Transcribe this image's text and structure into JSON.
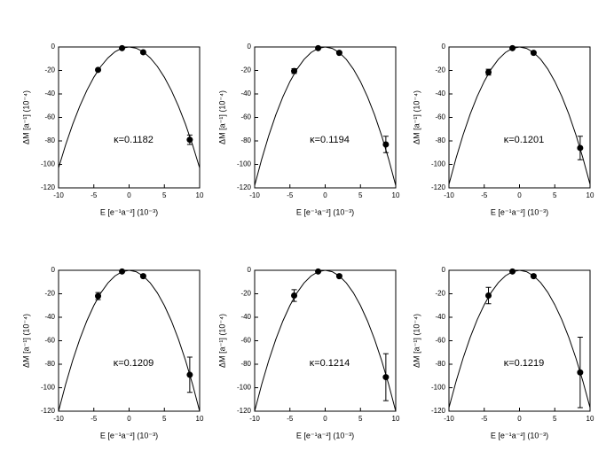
{
  "chart_data": [
    {
      "type": "scatter",
      "annotation": "κ=0.1182",
      "xlabel": "E [e⁻¹a⁻²] (10⁻³)",
      "ylabel": "ΔM [a⁻¹] (10⁻⁴)",
      "xlim": [
        -10,
        10
      ],
      "ylim": [
        -120,
        0
      ],
      "xticks": [
        -10,
        -5,
        0,
        5,
        10
      ],
      "yticks": [
        -120,
        -100,
        -80,
        -60,
        -40,
        -20,
        0
      ],
      "color": "#000000",
      "series": [
        {
          "kind": "line",
          "x": [
            -10,
            -9,
            -8,
            -7,
            -6,
            -5,
            -4,
            -3,
            -2,
            -1,
            0,
            1,
            2,
            3,
            4,
            5,
            6,
            7,
            8,
            9,
            10
          ],
          "values": [
            -103,
            -83.4,
            -65.9,
            -50.5,
            -37.1,
            -25.8,
            -16.5,
            -9.3,
            -4.1,
            -1,
            0,
            -1,
            -4.1,
            -9.3,
            -16.5,
            -25.8,
            -37.1,
            -50.5,
            -65.9,
            -83.4,
            -103
          ]
        },
        {
          "kind": "points",
          "x": [
            -4.4,
            -1,
            2,
            8.6
          ],
          "values": [
            -19.5,
            -1,
            -4.5,
            -79
          ],
          "errors": [
            1,
            0.5,
            0.5,
            4
          ]
        }
      ]
    },
    {
      "type": "scatter",
      "annotation": "κ=0.1194",
      "xlabel": "E [e⁻¹a⁻²] (10⁻³)",
      "ylabel": "ΔM [a⁻¹] (10⁻⁴)",
      "xlim": [
        -10,
        10
      ],
      "ylim": [
        -120,
        0
      ],
      "xticks": [
        -10,
        -5,
        0,
        5,
        10
      ],
      "yticks": [
        -120,
        -100,
        -80,
        -60,
        -40,
        -20,
        0
      ],
      "color": "#000000",
      "series": [
        {
          "kind": "line",
          "x": [
            -10,
            -9,
            -8,
            -7,
            -6,
            -5,
            -4,
            -3,
            -2,
            -1,
            0,
            1,
            2,
            3,
            4,
            5,
            6,
            7,
            8,
            9,
            10
          ],
          "values": [
            -118,
            -95.6,
            -75.5,
            -57.8,
            -42.5,
            -29.5,
            -18.9,
            -10.6,
            -4.7,
            -1.2,
            0,
            -1.2,
            -4.7,
            -10.6,
            -18.9,
            -29.5,
            -42.5,
            -57.8,
            -75.5,
            -95.6,
            -118
          ]
        },
        {
          "kind": "points",
          "x": [
            -4.4,
            -1,
            2,
            8.6
          ],
          "values": [
            -20.5,
            -1,
            -5,
            -83
          ],
          "errors": [
            2,
            0.5,
            0.5,
            7
          ]
        }
      ]
    },
    {
      "type": "scatter",
      "annotation": "κ=0.1201",
      "xlabel": "E [e⁻¹a⁻²] (10⁻³)",
      "ylabel": "ΔM [a⁻¹] (10⁻⁴)",
      "xlim": [
        -10,
        10
      ],
      "ylim": [
        -120,
        0
      ],
      "xticks": [
        -10,
        -5,
        0,
        5,
        10
      ],
      "yticks": [
        -120,
        -100,
        -80,
        -60,
        -40,
        -20,
        0
      ],
      "color": "#000000",
      "series": [
        {
          "kind": "line",
          "x": [
            -10,
            -9,
            -8,
            -7,
            -6,
            -5,
            -4,
            -3,
            -2,
            -1,
            0,
            1,
            2,
            3,
            4,
            5,
            6,
            7,
            8,
            9,
            10
          ],
          "values": [
            -117,
            -94.8,
            -74.9,
            -57.3,
            -42.1,
            -29.3,
            -18.7,
            -10.5,
            -4.7,
            -1.2,
            0,
            -1.2,
            -4.7,
            -10.5,
            -18.7,
            -29.3,
            -42.1,
            -57.3,
            -74.9,
            -94.8,
            -117
          ]
        },
        {
          "kind": "points",
          "x": [
            -4.4,
            -1,
            2,
            8.6
          ],
          "values": [
            -21.5,
            -1,
            -5,
            -86
          ],
          "errors": [
            2.5,
            0.5,
            0.5,
            10
          ]
        }
      ]
    },
    {
      "type": "scatter",
      "annotation": "κ=0.1209",
      "xlabel": "E [e⁻¹a⁻²] (10⁻³)",
      "ylabel": "ΔM [a⁻¹] (10⁻⁴)",
      "xlim": [
        -10,
        10
      ],
      "ylim": [
        -120,
        0
      ],
      "xticks": [
        -10,
        -5,
        0,
        5,
        10
      ],
      "yticks": [
        -120,
        -100,
        -80,
        -60,
        -40,
        -20,
        0
      ],
      "color": "#000000",
      "series": [
        {
          "kind": "line",
          "x": [
            -10,
            -9,
            -8,
            -7,
            -6,
            -5,
            -4,
            -3,
            -2,
            -1,
            0,
            1,
            2,
            3,
            4,
            5,
            6,
            7,
            8,
            9,
            10
          ],
          "values": [
            -120,
            -97.2,
            -76.8,
            -58.8,
            -43.2,
            -30,
            -19.2,
            -10.8,
            -4.8,
            -1.2,
            0,
            -1.2,
            -4.8,
            -10.8,
            -19.2,
            -30,
            -43.2,
            -58.8,
            -76.8,
            -97.2,
            -120
          ]
        },
        {
          "kind": "points",
          "x": [
            -4.4,
            -1,
            2,
            8.6
          ],
          "values": [
            -22,
            -1,
            -5,
            -89
          ],
          "errors": [
            3,
            0.5,
            1,
            15
          ]
        }
      ]
    },
    {
      "type": "scatter",
      "annotation": "κ=0.1214",
      "xlabel": "E [e⁻¹a⁻²] (10⁻³)",
      "ylabel": "ΔM [a⁻¹] (10⁻⁴)",
      "xlim": [
        -10,
        10
      ],
      "ylim": [
        -120,
        0
      ],
      "xticks": [
        -10,
        -5,
        0,
        5,
        10
      ],
      "yticks": [
        -120,
        -100,
        -80,
        -60,
        -40,
        -20,
        0
      ],
      "color": "#000000",
      "series": [
        {
          "kind": "line",
          "x": [
            -10,
            -9,
            -8,
            -7,
            -6,
            -5,
            -4,
            -3,
            -2,
            -1,
            0,
            1,
            2,
            3,
            4,
            5,
            6,
            7,
            8,
            9,
            10
          ],
          "values": [
            -120,
            -97.2,
            -76.8,
            -58.8,
            -43.2,
            -30,
            -19.2,
            -10.8,
            -4.8,
            -1.2,
            0,
            -1.2,
            -4.8,
            -10.8,
            -19.2,
            -30,
            -43.2,
            -58.8,
            -76.8,
            -97.2,
            -120
          ]
        },
        {
          "kind": "points",
          "x": [
            -4.4,
            -1,
            2,
            8.6
          ],
          "values": [
            -21.5,
            -1,
            -5,
            -91
          ],
          "errors": [
            5,
            0.5,
            1,
            20
          ]
        }
      ]
    },
    {
      "type": "scatter",
      "annotation": "κ=0.1219",
      "xlabel": "E [e⁻¹a⁻²] (10⁻³)",
      "ylabel": "ΔM [a⁻¹] (10⁻⁴)",
      "xlim": [
        -10,
        10
      ],
      "ylim": [
        -120,
        0
      ],
      "xticks": [
        -10,
        -5,
        0,
        5,
        10
      ],
      "yticks": [
        -120,
        -100,
        -80,
        -60,
        -40,
        -20,
        0
      ],
      "color": "#000000",
      "series": [
        {
          "kind": "line",
          "x": [
            -10,
            -9,
            -8,
            -7,
            -6,
            -5,
            -4,
            -3,
            -2,
            -1,
            0,
            1,
            2,
            3,
            4,
            5,
            6,
            7,
            8,
            9,
            10
          ],
          "values": [
            -117,
            -94.8,
            -74.9,
            -57.3,
            -42.1,
            -29.3,
            -18.7,
            -10.5,
            -4.7,
            -1.2,
            0,
            -1.2,
            -4.7,
            -10.5,
            -18.7,
            -29.3,
            -42.1,
            -57.3,
            -74.9,
            -94.8,
            -117
          ]
        },
        {
          "kind": "points",
          "x": [
            -4.4,
            -1,
            2,
            8.6
          ],
          "values": [
            -21.5,
            -1,
            -5,
            -87
          ],
          "errors": [
            7,
            0.5,
            1,
            30
          ]
        }
      ]
    }
  ]
}
